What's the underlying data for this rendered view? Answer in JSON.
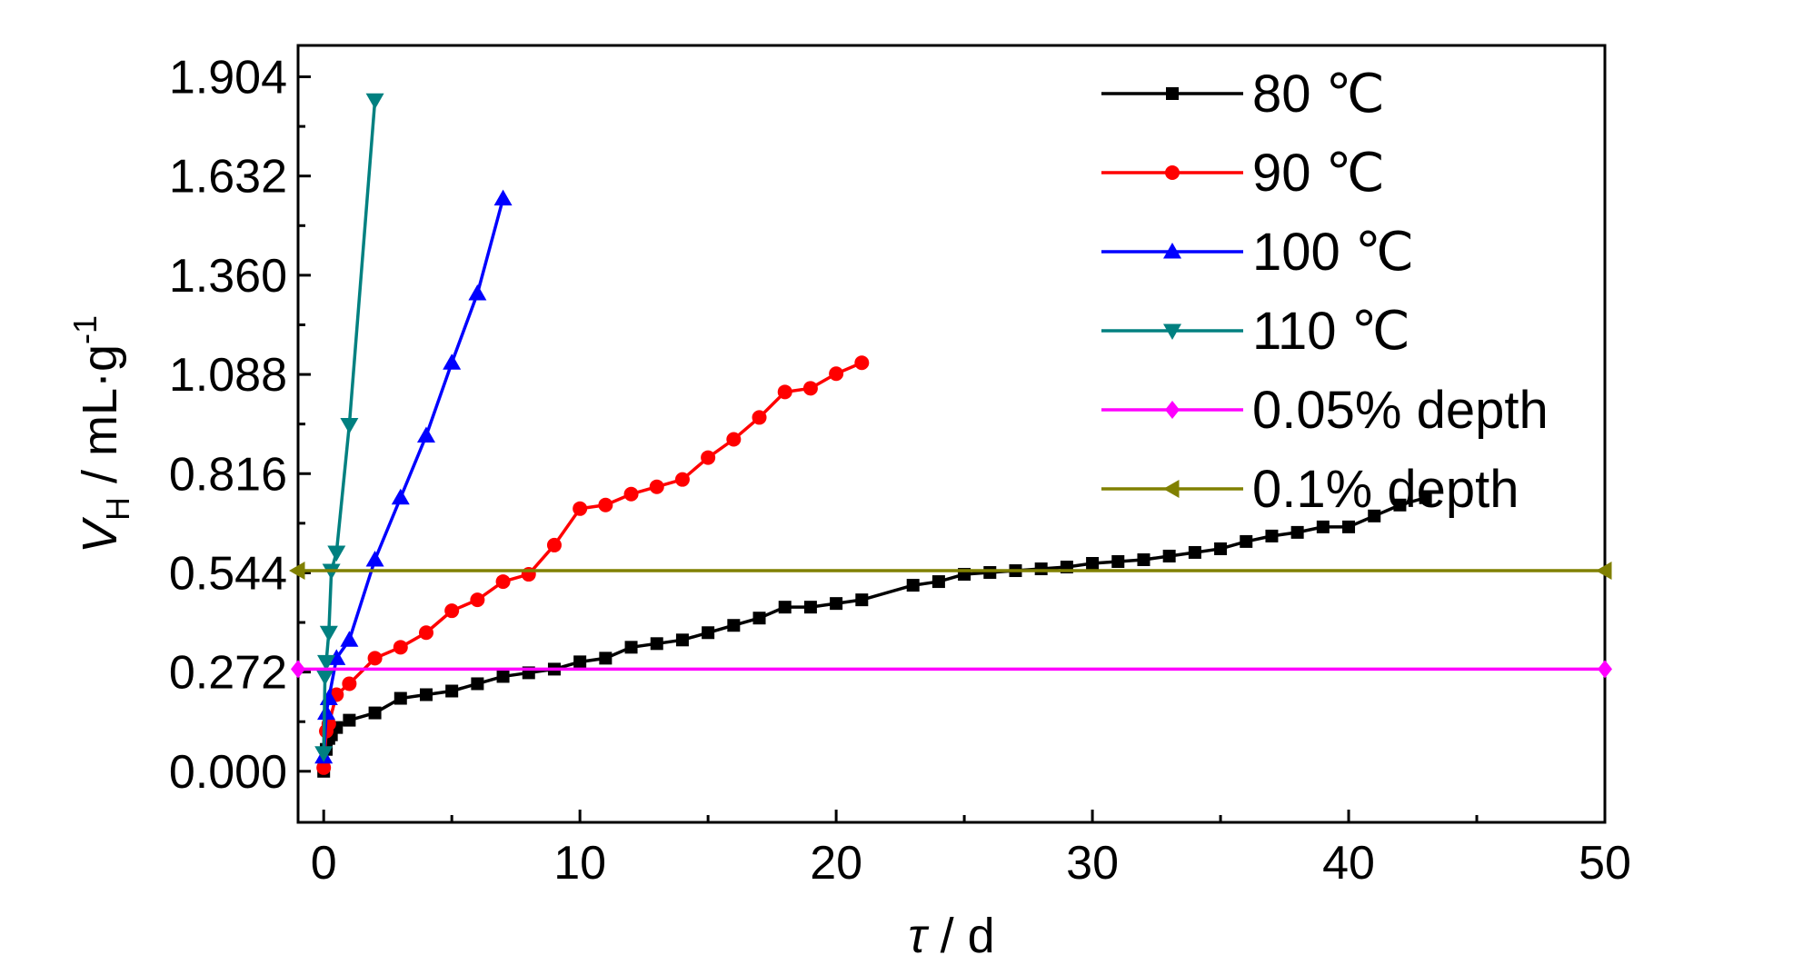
{
  "chart_data": {
    "type": "line",
    "title": "",
    "xlabel": "τ / d",
    "xlabel_symbol": "τ",
    "xlabel_unit": " / d",
    "ylabel_symbol": "V",
    "ylabel_subscript": "H",
    "ylabel_unit": " / mL·g",
    "ylabel_superscript": "-1",
    "xlim": [
      -1,
      50
    ],
    "ylim": [
      -0.14,
      1.99
    ],
    "xticks": [
      0,
      10,
      20,
      30,
      40,
      50
    ],
    "xtick_labels": [
      "0",
      "10",
      "20",
      "30",
      "40",
      "50"
    ],
    "yticks": [
      0.0,
      0.272,
      0.544,
      0.816,
      1.088,
      1.36,
      1.632,
      1.904
    ],
    "ytick_labels": [
      "0.000",
      "0.272",
      "0.544",
      "0.816",
      "1.088",
      "1.360",
      "1.632",
      "1.904"
    ],
    "grid": false,
    "legend_position": "top-right",
    "series": [
      {
        "name": "80 ℃",
        "color": "#000000",
        "marker": "square",
        "x": [
          0,
          0.1,
          0.2,
          0.3,
          0.5,
          1,
          2,
          3,
          4,
          5,
          6,
          7,
          8,
          9,
          10,
          11,
          12,
          13,
          14,
          15,
          16,
          17,
          18,
          19,
          20,
          21,
          23,
          24,
          25,
          26,
          27,
          28,
          29,
          30,
          31,
          32,
          33,
          34,
          35,
          36,
          37,
          38,
          39,
          40,
          41,
          42,
          43
        ],
        "y": [
          0.0,
          0.06,
          0.09,
          0.1,
          0.12,
          0.14,
          0.16,
          0.2,
          0.21,
          0.22,
          0.24,
          0.26,
          0.27,
          0.28,
          0.3,
          0.31,
          0.34,
          0.35,
          0.36,
          0.38,
          0.4,
          0.42,
          0.45,
          0.45,
          0.46,
          0.47,
          0.51,
          0.52,
          0.54,
          0.545,
          0.55,
          0.555,
          0.56,
          0.57,
          0.575,
          0.58,
          0.59,
          0.6,
          0.61,
          0.63,
          0.645,
          0.655,
          0.67,
          0.67,
          0.7,
          0.73,
          0.75
        ]
      },
      {
        "name": "90 ℃",
        "color": "#ff0000",
        "marker": "circle",
        "x": [
          0,
          0.1,
          0.2,
          0.5,
          1,
          2,
          3,
          4,
          5,
          6,
          7,
          8,
          9,
          10,
          11,
          12,
          13,
          14,
          15,
          16,
          17,
          18,
          19,
          20,
          21
        ],
        "y": [
          0.01,
          0.11,
          0.13,
          0.21,
          0.24,
          0.31,
          0.34,
          0.38,
          0.44,
          0.47,
          0.52,
          0.54,
          0.62,
          0.72,
          0.73,
          0.76,
          0.78,
          0.8,
          0.86,
          0.91,
          0.97,
          1.04,
          1.05,
          1.09,
          1.12
        ]
      },
      {
        "name": "100 ℃",
        "color": "#0000ff",
        "marker": "triangle-up",
        "x": [
          0,
          0.1,
          0.2,
          0.5,
          1,
          2,
          3,
          4,
          5,
          6,
          7
        ],
        "y": [
          0.04,
          0.16,
          0.2,
          0.31,
          0.36,
          0.58,
          0.75,
          0.92,
          1.12,
          1.31,
          1.57
        ]
      },
      {
        "name": "110 ℃",
        "color": "#008080",
        "marker": "triangle-down",
        "x": [
          0,
          0.05,
          0.1,
          0.2,
          0.3,
          0.5,
          1,
          2
        ],
        "y": [
          0.05,
          0.26,
          0.3,
          0.38,
          0.55,
          0.6,
          0.95,
          1.84
        ]
      },
      {
        "name": "0.05% depth",
        "color": "#ff00ff",
        "marker": "diamond",
        "x": [
          -1,
          50
        ],
        "y": [
          0.28,
          0.28
        ]
      },
      {
        "name": "0.1% depth",
        "color": "#808000",
        "marker": "triangle-left",
        "x": [
          -1,
          50
        ],
        "y": [
          0.55,
          0.55
        ]
      }
    ]
  }
}
